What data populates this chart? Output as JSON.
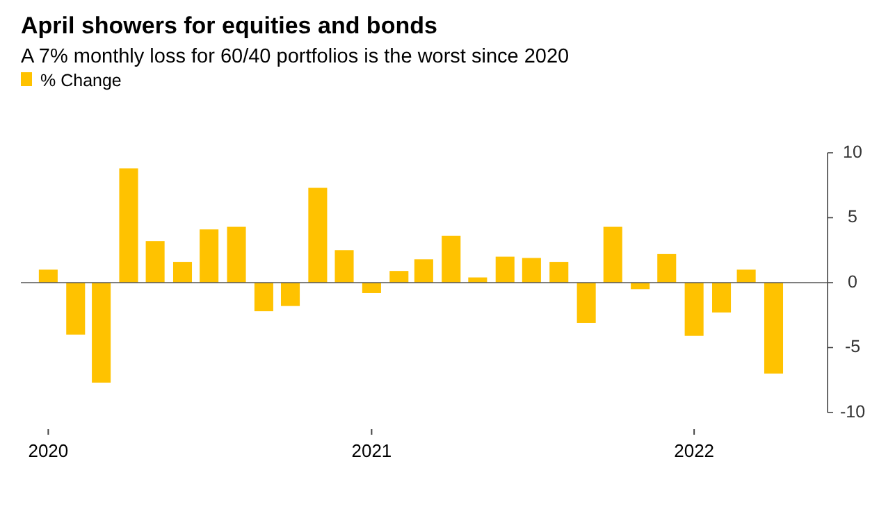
{
  "chart_data": {
    "type": "bar",
    "title": "April showers for equities and bonds",
    "subtitle": "A 7% monthly loss for 60/40 portfolios is the worst since 2020",
    "x": [
      "2020-01",
      "2020-02",
      "2020-03",
      "2020-04",
      "2020-05",
      "2020-06",
      "2020-07",
      "2020-08",
      "2020-09",
      "2020-10",
      "2020-11",
      "2020-12",
      "2021-01",
      "2021-02",
      "2021-03",
      "2021-04",
      "2021-05",
      "2021-06",
      "2021-07",
      "2021-08",
      "2021-09",
      "2021-10",
      "2021-11",
      "2021-12",
      "2022-01",
      "2022-02",
      "2022-03",
      "2022-04"
    ],
    "series": [
      {
        "name": "% Change",
        "color": "#ffc200",
        "values": [
          1.0,
          -4.0,
          -7.7,
          8.8,
          3.2,
          1.6,
          4.1,
          4.3,
          -2.2,
          -1.8,
          7.3,
          2.5,
          -0.8,
          0.9,
          1.8,
          3.6,
          0.4,
          2.0,
          1.9,
          1.6,
          -3.1,
          4.3,
          -0.5,
          2.2,
          -4.1,
          -2.3,
          1.0,
          -7.0
        ]
      }
    ],
    "xlim": [
      "2019-12",
      "2022-06"
    ],
    "xticks": [
      {
        "value": "2020-01",
        "label": "2020"
      },
      {
        "value": "2021-01",
        "label": "2021"
      },
      {
        "value": "2022-01",
        "label": "2022"
      }
    ],
    "ylim": [
      -10,
      10
    ],
    "yticks": [
      -10,
      -5,
      0,
      5,
      10
    ],
    "grid": false,
    "ref_lines": [
      {
        "axis": "y",
        "value": 0,
        "color": "#555555"
      }
    ],
    "legend": "top left"
  }
}
